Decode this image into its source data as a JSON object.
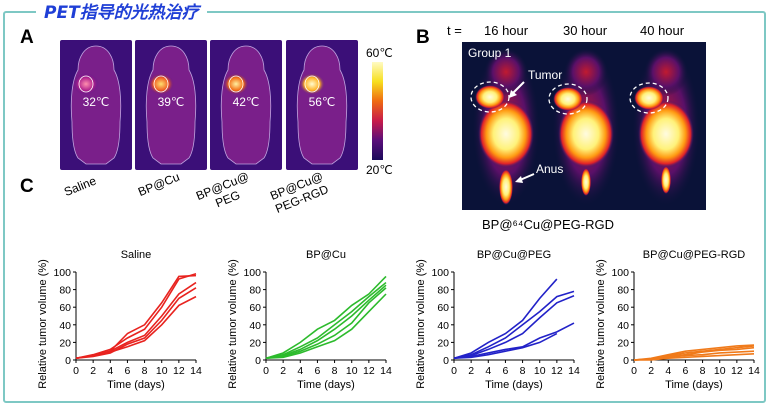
{
  "title": "PET指导的光热治疗",
  "panel_labels": [
    "A",
    "B",
    "C"
  ],
  "panel_a": {
    "temperatures": [
      "32℃",
      "39℃",
      "42℃",
      "56℃"
    ],
    "colorbar_max": "60℃",
    "colorbar_min": "20℃",
    "groups": [
      "Saline",
      "BP@Cu",
      "BP@Cu@\nPEG",
      "BP@Cu@\nPEG-RGD"
    ]
  },
  "panel_b": {
    "t_label": "t =",
    "times": [
      "16 hour",
      "30 hour",
      "40 hour"
    ],
    "group": "Group 1",
    "tumor": "Tumor",
    "anus": "Anus",
    "caption": "BP@⁶⁴Cu@PEG-RGD"
  },
  "chart_data": [
    {
      "type": "line",
      "title": "Saline",
      "xlabel": "Time (days)",
      "ylabel": "Relative tumor volume (%)",
      "xlim": [
        0,
        14
      ],
      "ylim": [
        0,
        100
      ],
      "color": "#e8231f",
      "xticks": [
        0,
        2,
        4,
        6,
        8,
        10,
        12,
        14
      ],
      "yticks": [
        0,
        20,
        40,
        60,
        80,
        100
      ],
      "series": [
        {
          "x": [
            0,
            2,
            4,
            6,
            8,
            10,
            12,
            14
          ],
          "values": [
            2,
            5,
            10,
            30,
            40,
            65,
            95,
            96
          ]
        },
        {
          "x": [
            0,
            2,
            4,
            6,
            8,
            10,
            12,
            14
          ],
          "values": [
            2,
            6,
            12,
            25,
            35,
            60,
            92,
            98
          ]
        },
        {
          "x": [
            0,
            2,
            4,
            6,
            8,
            10,
            12,
            14
          ],
          "values": [
            2,
            4,
            8,
            18,
            25,
            45,
            70,
            82
          ]
        },
        {
          "x": [
            0,
            2,
            4,
            6,
            8,
            10,
            12,
            14
          ],
          "values": [
            2,
            5,
            9,
            15,
            22,
            40,
            62,
            72
          ]
        },
        {
          "x": [
            0,
            2,
            4,
            6,
            8,
            10,
            12,
            14
          ],
          "values": [
            2,
            5,
            10,
            20,
            28,
            50,
            75,
            88
          ]
        }
      ]
    },
    {
      "type": "line",
      "title": "BP@Cu",
      "xlabel": "Time (days)",
      "ylabel": "Relative tumor volume (%)",
      "xlim": [
        0,
        14
      ],
      "ylim": [
        0,
        100
      ],
      "color": "#2dbb2d",
      "xticks": [
        0,
        2,
        4,
        6,
        8,
        10,
        12,
        14
      ],
      "yticks": [
        0,
        20,
        40,
        60,
        80,
        100
      ],
      "series": [
        {
          "x": [
            0,
            2,
            4,
            6,
            8,
            10,
            12,
            14
          ],
          "values": [
            2,
            8,
            20,
            35,
            45,
            62,
            75,
            95
          ]
        },
        {
          "x": [
            0,
            2,
            4,
            6,
            8,
            10,
            12,
            14
          ],
          "values": [
            2,
            6,
            15,
            25,
            40,
            55,
            72,
            88
          ]
        },
        {
          "x": [
            0,
            2,
            4,
            6,
            8,
            10,
            12,
            14
          ],
          "values": [
            2,
            5,
            12,
            22,
            35,
            50,
            68,
            85
          ]
        },
        {
          "x": [
            0,
            2,
            4,
            6,
            8,
            10,
            12,
            14
          ],
          "values": [
            2,
            4,
            10,
            18,
            28,
            42,
            65,
            82
          ]
        },
        {
          "x": [
            0,
            2,
            4,
            6,
            8,
            10,
            12,
            14
          ],
          "values": [
            2,
            3,
            8,
            15,
            22,
            35,
            55,
            75
          ]
        }
      ]
    },
    {
      "type": "line",
      "title": "BP@Cu@PEG",
      "xlabel": "Time (days)",
      "ylabel": "Relative tumor volume (%)",
      "xlim": [
        0,
        14
      ],
      "ylim": [
        0,
        100
      ],
      "color": "#2222c8",
      "xticks": [
        0,
        2,
        4,
        6,
        8,
        10,
        12,
        14
      ],
      "yticks": [
        0,
        20,
        40,
        60,
        80,
        100
      ],
      "series": [
        {
          "x": [
            0,
            2,
            4,
            6,
            8,
            10,
            12
          ],
          "values": [
            2,
            8,
            20,
            30,
            45,
            70,
            92
          ]
        },
        {
          "x": [
            0,
            2,
            4,
            6,
            8,
            10,
            12,
            14
          ],
          "values": [
            2,
            6,
            15,
            25,
            40,
            55,
            72,
            78
          ]
        },
        {
          "x": [
            0,
            2,
            4,
            6,
            8,
            10,
            12,
            14
          ],
          "values": [
            2,
            5,
            12,
            20,
            30,
            48,
            65,
            73
          ]
        },
        {
          "x": [
            0,
            2,
            4,
            6,
            8,
            10,
            12,
            14
          ],
          "values": [
            2,
            4,
            8,
            12,
            15,
            25,
            32,
            42
          ]
        },
        {
          "x": [
            0,
            2,
            4,
            6,
            8,
            10,
            12
          ],
          "values": [
            2,
            3,
            6,
            10,
            14,
            20,
            30
          ]
        }
      ]
    },
    {
      "type": "line",
      "title": "BP@Cu@PEG-RGD",
      "xlabel": "Time (days)",
      "ylabel": "Relative tumor volume (%)",
      "xlim": [
        0,
        14
      ],
      "ylim": [
        0,
        100
      ],
      "color": "#f07a1a",
      "xticks": [
        0,
        2,
        4,
        6,
        8,
        10,
        12,
        14
      ],
      "yticks": [
        0,
        20,
        40,
        60,
        80,
        100
      ],
      "series": [
        {
          "x": [
            0,
            2,
            4,
            6,
            8,
            10,
            12,
            14
          ],
          "values": [
            0,
            1,
            5,
            8,
            10,
            12,
            14,
            16
          ]
        },
        {
          "x": [
            0,
            2,
            4,
            6,
            8,
            10,
            12,
            14
          ],
          "values": [
            0,
            2,
            6,
            10,
            12,
            14,
            16,
            17
          ]
        },
        {
          "x": [
            0,
            2,
            4,
            6,
            8,
            10,
            12,
            14
          ],
          "values": [
            0,
            1,
            4,
            6,
            9,
            11,
            12,
            14
          ]
        },
        {
          "x": [
            0,
            2,
            4,
            6,
            8,
            10,
            12,
            14
          ],
          "values": [
            0,
            1,
            3,
            5,
            6,
            8,
            9,
            10
          ]
        },
        {
          "x": [
            0,
            2,
            4,
            6,
            8,
            10,
            12,
            14
          ],
          "values": [
            0,
            0,
            2,
            3,
            4,
            5,
            6,
            7
          ]
        }
      ]
    }
  ]
}
